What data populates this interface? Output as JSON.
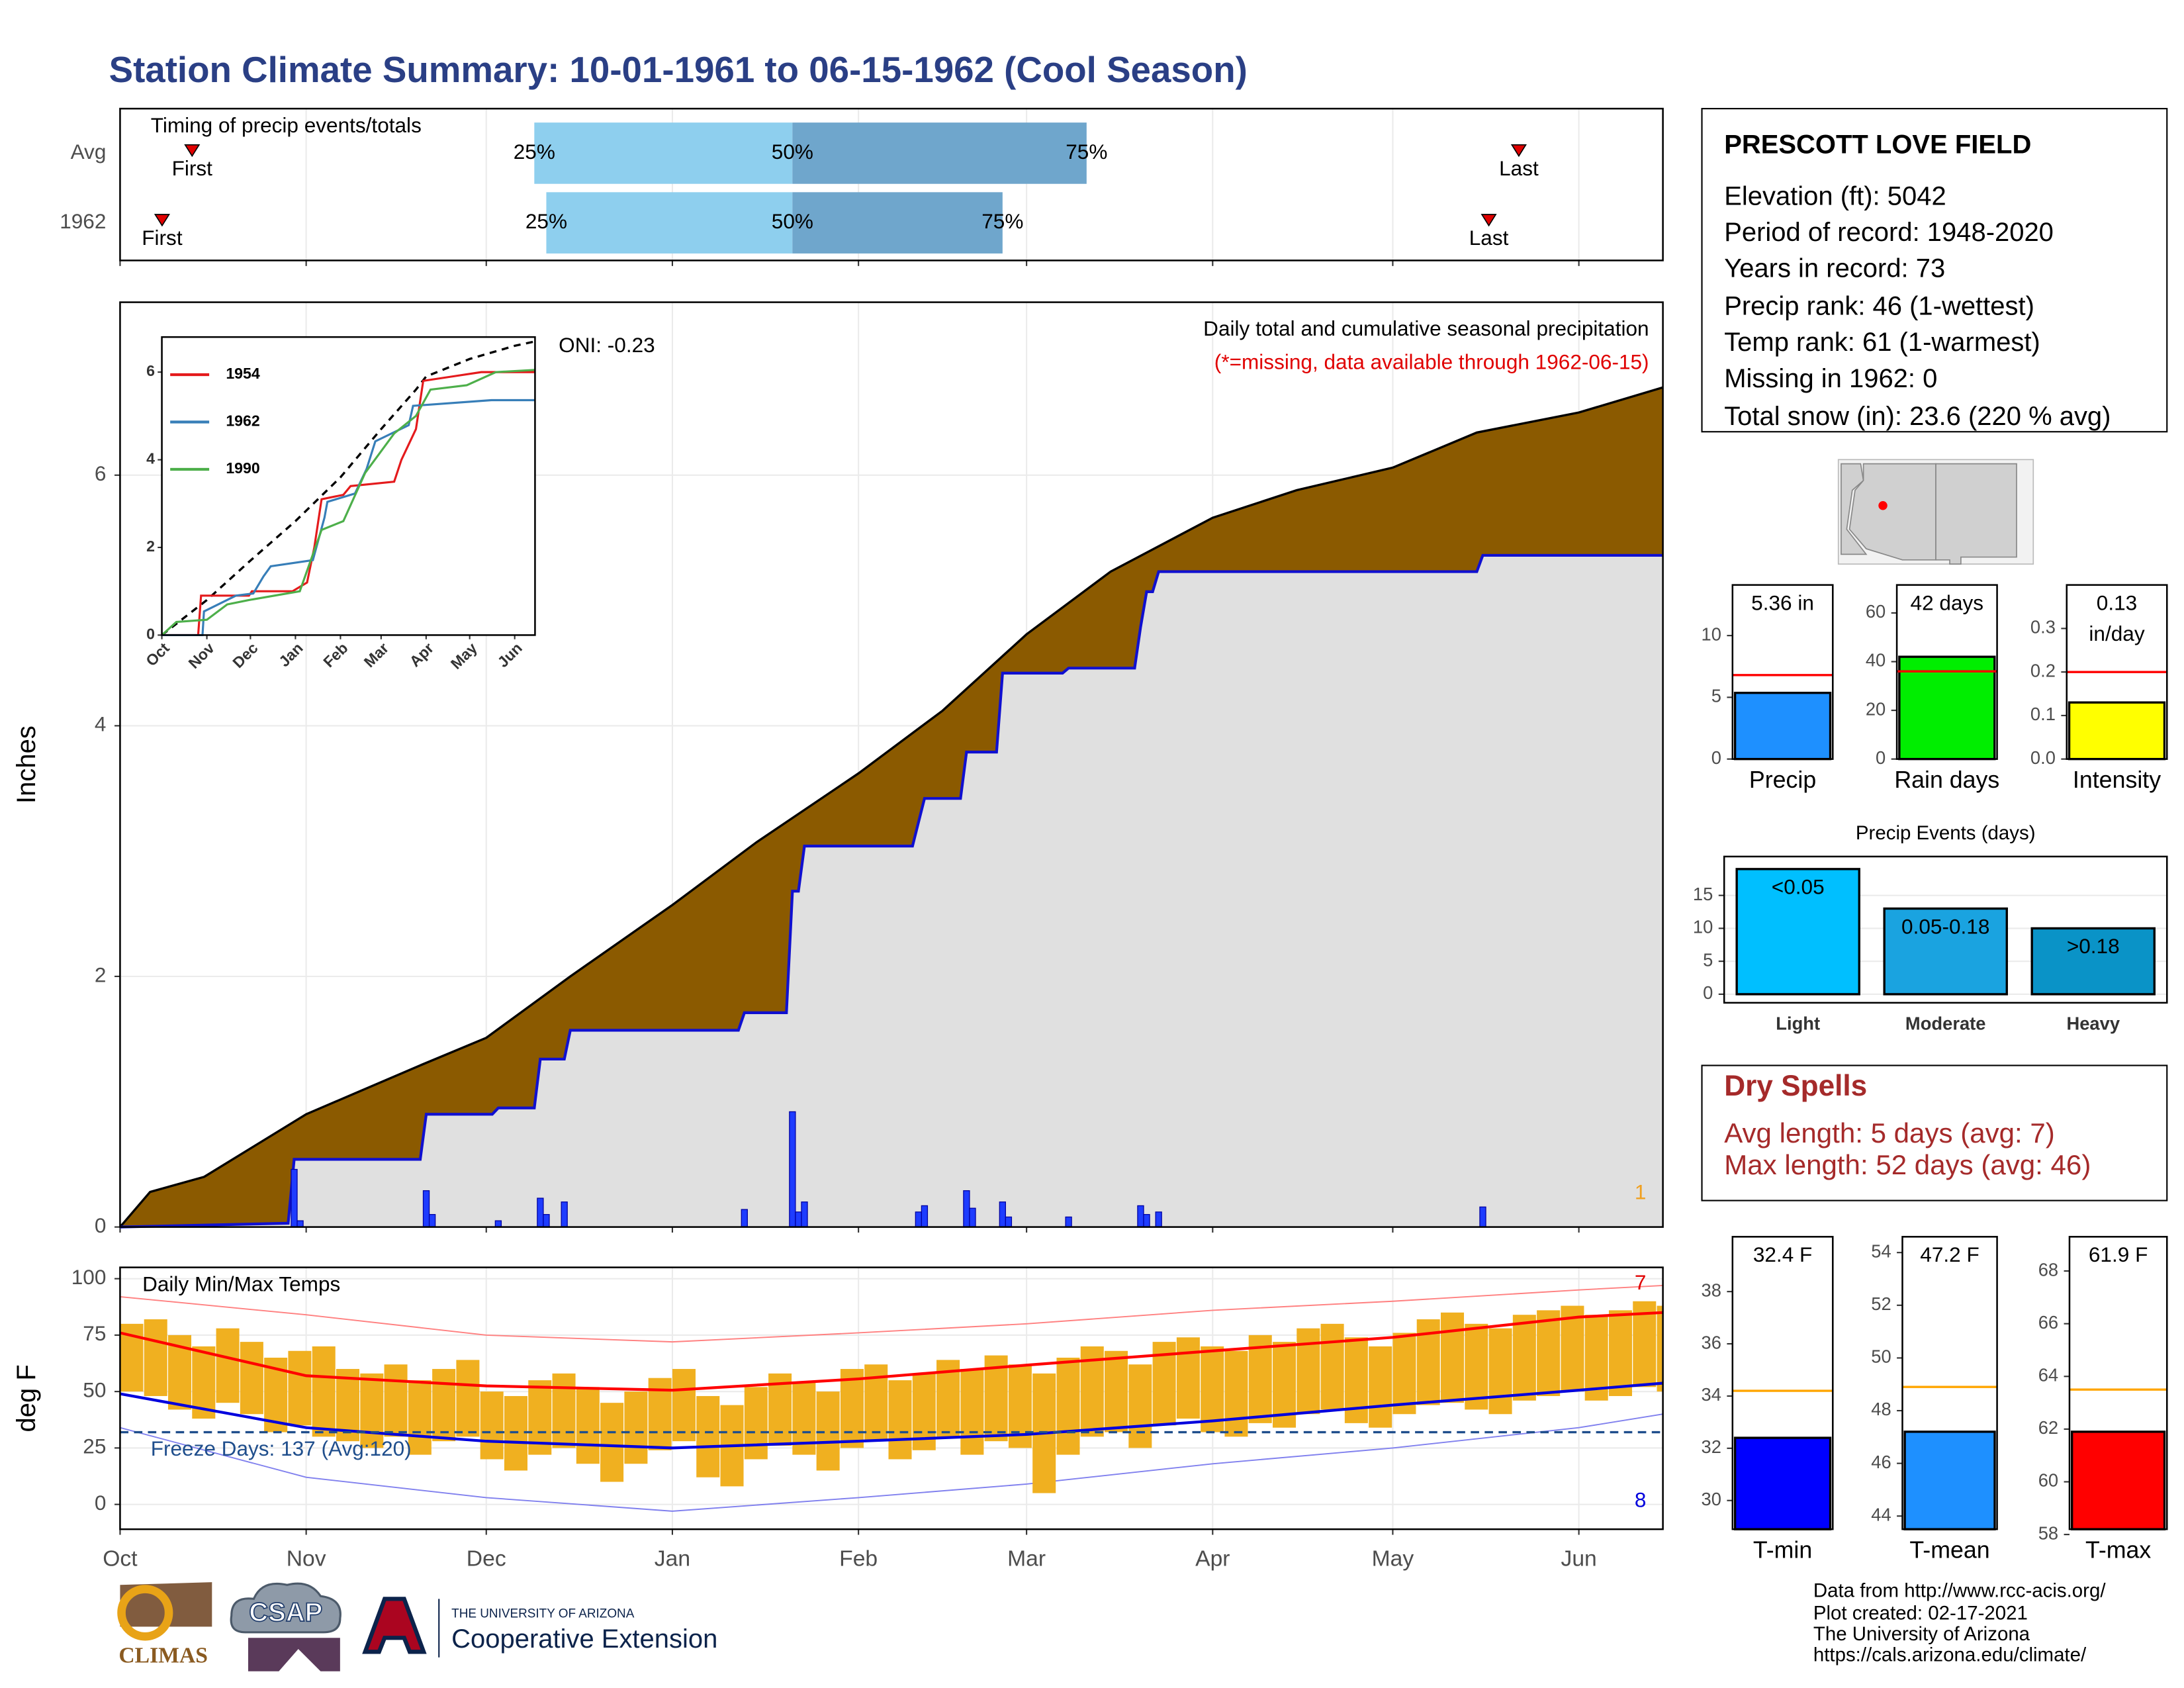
{
  "title": "Station Climate Summary: 10-01-1961 to 06-15-1962 (Cool Season)",
  "season_axis": {
    "xlim": [
      0,
      257
    ],
    "xticks": [
      {
        "value": 0,
        "label": "Oct"
      },
      {
        "value": 31,
        "label": "Nov"
      },
      {
        "value": 61,
        "label": "Dec"
      },
      {
        "value": 92,
        "label": "Jan"
      },
      {
        "value": 123,
        "label": "Feb"
      },
      {
        "value": 151,
        "label": "Mar"
      },
      {
        "value": 182,
        "label": "Apr"
      },
      {
        "value": 212,
        "label": "May"
      },
      {
        "value": 243,
        "label": "Jun"
      }
    ]
  },
  "chart_data": [
    {
      "type": "timeline",
      "title": "Timing of precip events/totals",
      "labels": {
        "first": "First",
        "last": "Last",
        "q25": "25%",
        "q50": "50%",
        "q75": "75%"
      },
      "colors": {
        "lower": "#8ecfee",
        "upper": "#6fa6cc",
        "marker": "#e00000"
      },
      "rows": [
        {
          "name": "Avg",
          "first": 12,
          "q25": 69,
          "q50": 112,
          "q75": 161,
          "last": 233
        },
        {
          "name": "1962",
          "first": 7,
          "q25": 71,
          "q50": 112,
          "q75": 147,
          "last": 228
        }
      ]
    },
    {
      "type": "area",
      "y_label": "Inches",
      "ylim": [
        0,
        7.38
      ],
      "yticks": [
        0,
        2,
        4,
        6
      ],
      "grid": true,
      "annotations": [
        {
          "text": "Daily total and cumulative seasonal precipitation",
          "color": "#000000"
        },
        {
          "text": "(*=missing, data available through 1962-06-15)",
          "color": "#e00000"
        },
        {
          "text": "ONI: -0.23",
          "color": "#000000"
        },
        {
          "text": "1",
          "color": "#f0a020"
        }
      ],
      "average": {
        "color": "#8b5a00",
        "x": [
          0,
          5,
          14,
          31,
          50,
          61,
          75,
          92,
          106,
          123,
          137,
          151,
          165,
          182,
          196,
          212,
          226,
          243,
          257
        ],
        "values": [
          0,
          0.28,
          0.4,
          0.9,
          1.29,
          1.51,
          2.0,
          2.57,
          3.07,
          3.62,
          4.12,
          4.73,
          5.23,
          5.66,
          5.88,
          6.06,
          6.34,
          6.5,
          6.7
        ]
      },
      "current": {
        "color": "#1010d0",
        "fill": "#e0e0e0",
        "x": [
          0,
          28,
          29,
          50,
          51,
          62,
          63,
          69,
          70,
          74,
          75,
          103,
          104,
          111,
          112,
          113,
          114,
          132,
          133,
          134,
          140,
          141,
          146,
          147,
          157,
          158,
          169,
          170,
          171,
          172,
          173,
          226,
          227,
          257
        ],
        "values": [
          0,
          0.03,
          0.54,
          0.54,
          0.9,
          0.9,
          0.95,
          0.95,
          1.34,
          1.34,
          1.57,
          1.57,
          1.71,
          1.71,
          2.68,
          2.68,
          3.04,
          3.04,
          3.23,
          3.42,
          3.42,
          3.79,
          3.79,
          4.42,
          4.42,
          4.46,
          4.46,
          4.79,
          5.07,
          5.07,
          5.23,
          5.23,
          5.36,
          5.36
        ]
      },
      "daily": {
        "color": "#1e3cff",
        "x": [
          29,
          30,
          51,
          52,
          63,
          70,
          71,
          74,
          104,
          112,
          113,
          114,
          133,
          134,
          141,
          142,
          147,
          148,
          158,
          170,
          171,
          173,
          227
        ],
        "values": [
          0.46,
          0.05,
          0.29,
          0.1,
          0.05,
          0.23,
          0.1,
          0.2,
          0.14,
          0.92,
          0.12,
          0.2,
          0.12,
          0.17,
          0.29,
          0.15,
          0.2,
          0.08,
          0.08,
          0.17,
          0.1,
          0.12,
          0.16
        ]
      }
    },
    {
      "type": "line",
      "xlim": [
        0,
        257
      ],
      "ylim": [
        0,
        6.8
      ],
      "yticks": [
        0,
        2,
        4,
        6
      ],
      "xticks": [
        {
          "value": 0,
          "label": "Oct"
        },
        {
          "value": 31,
          "label": "Nov"
        },
        {
          "value": 61,
          "label": "Dec"
        },
        {
          "value": 92,
          "label": "Jan"
        },
        {
          "value": 123,
          "label": "Feb"
        },
        {
          "value": 151,
          "label": "Mar"
        },
        {
          "value": 182,
          "label": "Apr"
        },
        {
          "value": 212,
          "label": "May"
        },
        {
          "value": 243,
          "label": "Jun"
        }
      ],
      "series": [
        {
          "name": "1954",
          "color": "#e41a1c",
          "x": [
            0,
            25,
            27,
            60,
            62,
            90,
            100,
            105,
            110,
            125,
            130,
            160,
            165,
            175,
            180,
            200,
            220,
            257
          ],
          "values": [
            0,
            0,
            0.9,
            0.9,
            1.0,
            1.0,
            1.2,
            2.0,
            3.1,
            3.2,
            3.4,
            3.5,
            4.0,
            4.7,
            5.8,
            5.9,
            6.0,
            6.0
          ]
        },
        {
          "name": "1962",
          "color": "#377eb8",
          "x": [
            0,
            28,
            29,
            51,
            63,
            70,
            75,
            104,
            112,
            114,
            133,
            141,
            147,
            170,
            173,
            227,
            257
          ],
          "values": [
            0,
            0,
            0.54,
            0.9,
            0.95,
            1.34,
            1.57,
            1.71,
            2.68,
            3.04,
            3.23,
            3.79,
            4.42,
            4.79,
            5.23,
            5.36,
            5.36
          ]
        },
        {
          "name": "1990",
          "color": "#4daf4a",
          "x": [
            0,
            10,
            31,
            45,
            60,
            95,
            110,
            125,
            140,
            160,
            175,
            185,
            210,
            230,
            257
          ],
          "values": [
            0,
            0.3,
            0.35,
            0.7,
            0.8,
            1.0,
            2.4,
            2.6,
            3.7,
            4.6,
            5.0,
            5.6,
            5.7,
            6.0,
            6.05
          ]
        }
      ],
      "average": {
        "color": "#000000",
        "dashed": true,
        "x": [
          0,
          31,
          61,
          92,
          123,
          151,
          175,
          182,
          212,
          243,
          257
        ],
        "values": [
          0,
          0.8,
          1.7,
          2.6,
          3.6,
          4.7,
          5.6,
          5.9,
          6.3,
          6.6,
          6.7
        ]
      }
    },
    {
      "type": "range",
      "title": "Daily Min/Max Temps",
      "y_label": "deg F",
      "ylim": [
        -11,
        105
      ],
      "yticks": [
        0,
        25,
        50,
        75,
        100
      ],
      "grid": true,
      "bar_color": "#f0b020",
      "bar_days": 4,
      "x": [
        0,
        4,
        8,
        12,
        16,
        20,
        24,
        28,
        32,
        36,
        40,
        44,
        48,
        52,
        56,
        60,
        64,
        68,
        72,
        76,
        80,
        84,
        88,
        92,
        96,
        100,
        104,
        108,
        112,
        116,
        120,
        124,
        128,
        132,
        136,
        140,
        144,
        148,
        152,
        156,
        160,
        164,
        168,
        172,
        176,
        180,
        184,
        188,
        192,
        196,
        200,
        204,
        208,
        212,
        216,
        220,
        224,
        228,
        232,
        236,
        240,
        244,
        248,
        252,
        256
      ],
      "max": [
        80,
        82,
        75,
        70,
        78,
        72,
        65,
        68,
        70,
        60,
        58,
        62,
        55,
        60,
        64,
        50,
        48,
        55,
        58,
        52,
        45,
        50,
        56,
        60,
        48,
        44,
        52,
        58,
        54,
        50,
        60,
        62,
        55,
        58,
        64,
        60,
        66,
        62,
        58,
        65,
        70,
        68,
        62,
        72,
        74,
        70,
        68,
        75,
        72,
        78,
        80,
        74,
        70,
        76,
        82,
        85,
        80,
        78,
        84,
        86,
        88,
        84,
        86,
        90,
        88
      ],
      "min": [
        50,
        48,
        42,
        38,
        45,
        40,
        32,
        35,
        30,
        28,
        25,
        30,
        22,
        28,
        30,
        20,
        15,
        22,
        25,
        18,
        10,
        18,
        24,
        28,
        12,
        8,
        20,
        26,
        22,
        15,
        25,
        28,
        20,
        24,
        30,
        22,
        28,
        25,
        5,
        22,
        30,
        32,
        25,
        35,
        38,
        32,
        30,
        36,
        34,
        40,
        42,
        36,
        34,
        40,
        44,
        45,
        42,
        40,
        46,
        48,
        50,
        46,
        48,
        52,
        50
      ],
      "avg_max": {
        "color": "#ff0000",
        "x": [
          0,
          31,
          61,
          92,
          123,
          151,
          182,
          212,
          243,
          257
        ],
        "values": [
          76,
          57,
          52.5,
          50.6,
          55.6,
          61.7,
          68,
          74,
          83,
          85
        ]
      },
      "avg_min": {
        "color": "#0000dd",
        "x": [
          0,
          31,
          61,
          92,
          123,
          151,
          182,
          212,
          243,
          257
        ],
        "values": [
          49,
          34,
          28,
          25,
          28,
          31,
          37,
          44,
          50.6,
          53.7
        ]
      },
      "record_high": {
        "color": "#ff8080",
        "x": [
          0,
          31,
          61,
          92,
          123,
          151,
          182,
          212,
          243,
          257
        ],
        "values": [
          92,
          84,
          75,
          72,
          76,
          80,
          86,
          90,
          95,
          97
        ]
      },
      "record_low": {
        "color": "#8080ee",
        "x": [
          0,
          31,
          61,
          92,
          123,
          151,
          182,
          212,
          243,
          257
        ],
        "values": [
          34,
          12,
          3,
          -3,
          3,
          9,
          18,
          25,
          34,
          40
        ]
      },
      "freeze": {
        "value": 32,
        "label": "Freeze Days: 137 (Avg:120)",
        "color": "#1f4e8c"
      },
      "annotations": [
        {
          "text": "7",
          "color": "#e00000"
        },
        {
          "text": "8",
          "color": "#0000dd"
        }
      ]
    },
    {
      "type": "bar",
      "categories": [
        "Precip"
      ],
      "values": [
        5.36
      ],
      "value_labels": [
        "5.36 in"
      ],
      "color": "#1e90ff",
      "ylim": [
        0,
        14.1
      ],
      "yticks": [
        0,
        5,
        10
      ],
      "reference": {
        "value": 6.8,
        "color": "#ff0000"
      }
    },
    {
      "type": "bar",
      "categories": [
        "Rain days"
      ],
      "values": [
        42
      ],
      "value_labels": [
        "42 days"
      ],
      "color": "#00ee00",
      "ylim": [
        0,
        71.5
      ],
      "yticks": [
        0,
        20,
        40,
        60
      ],
      "reference": {
        "value": 36,
        "color": "#ff0000"
      }
    },
    {
      "type": "bar",
      "categories": [
        "Intensity"
      ],
      "values": [
        0.13
      ],
      "value_labels": [
        "0.13 in/day"
      ],
      "color": "#ffff00",
      "ylim": [
        0,
        0.4
      ],
      "yticks": [
        {
          "value": 0,
          "label": "0.0"
        },
        0.1,
        0.2,
        0.3
      ],
      "reference": {
        "value": 0.2,
        "color": "#ff0000"
      }
    },
    {
      "type": "bar",
      "title": "Precip Events (days)",
      "categories": [
        "Light",
        "Moderate",
        "Heavy"
      ],
      "values": [
        19,
        13,
        10
      ],
      "bar_labels": [
        "<0.05",
        "0.05-0.18",
        ">0.18"
      ],
      "colors": [
        "#00bfff",
        "#1aa3e0",
        "#0a93c7"
      ],
      "ylim": [
        -1.3,
        20.9
      ],
      "yticks": [
        0,
        5,
        10,
        15
      ],
      "grid": true
    },
    {
      "type": "bar",
      "categories": [
        "T-min"
      ],
      "values": [
        32.4
      ],
      "value_labels": [
        "32.4 F"
      ],
      "color": "#0000ff",
      "ylim": [
        28.9,
        40.1
      ],
      "yticks": [
        30,
        32,
        34,
        36,
        38
      ],
      "reference": {
        "value": 34.2,
        "color": "#ffa500"
      }
    },
    {
      "type": "bar",
      "categories": [
        "T-mean"
      ],
      "values": [
        47.2
      ],
      "value_labels": [
        "47.2 F"
      ],
      "color": "#1e90ff",
      "ylim": [
        43.5,
        54.6
      ],
      "yticks": [
        44,
        46,
        48,
        50,
        52,
        54
      ],
      "reference": {
        "value": 48.9,
        "color": "#ffa500"
      }
    },
    {
      "type": "bar",
      "categories": [
        "T-max"
      ],
      "values": [
        61.9
      ],
      "value_labels": [
        "61.9 F"
      ],
      "color": "#ff0000",
      "ylim": [
        58.2,
        69.3
      ],
      "yticks": [
        58,
        60,
        62,
        64,
        66,
        68
      ],
      "reference": {
        "value": 63.5,
        "color": "#ffa500"
      }
    }
  ],
  "station": {
    "name": "PRESCOTT LOVE FIELD",
    "lines": [
      "Elevation (ft): 5042",
      "Period of record: 1948-2020",
      "Years in record: 73",
      "Precip rank: 46 (1-wettest)",
      "Temp rank: 61 (1-warmest)",
      "Missing in 1962: 0",
      "Total snow (in): 23.6 (220 % avg)"
    ]
  },
  "dry_spells": {
    "title": "Dry Spells",
    "lines": [
      "Avg length: 5 days (avg: 7)",
      "Max length: 52 days (avg: 46)"
    ]
  },
  "logos": {
    "climas": "CLIMAS",
    "csap": "CSAP",
    "university": "THE UNIVERSITY OF ARIZONA",
    "extension": "Cooperative Extension"
  },
  "credits": [
    "Data from http://www.rcc-acis.org/",
    "Plot created: 02-17-2021",
    "The University of Arizona",
    "https://cals.arizona.edu/climate/"
  ]
}
